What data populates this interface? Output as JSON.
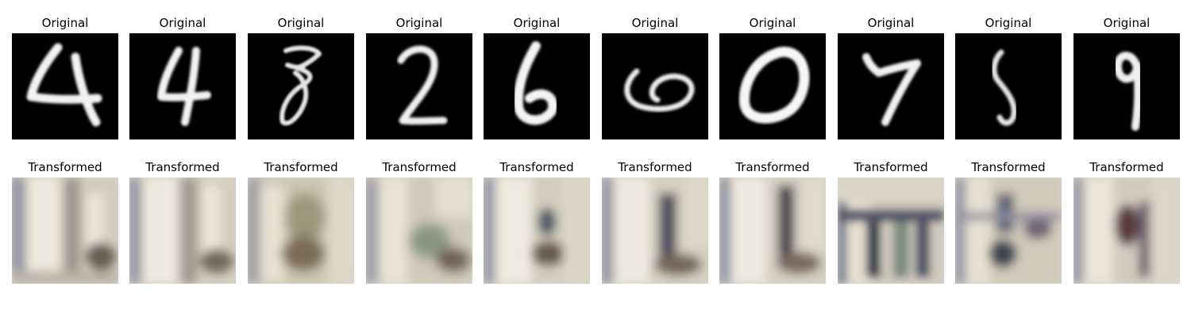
{
  "panels": [
    {
      "original_title": "Original",
      "transformed_title": "Transformed",
      "digit": "4"
    },
    {
      "original_title": "Original",
      "transformed_title": "Transformed",
      "digit": "4"
    },
    {
      "original_title": "Original",
      "transformed_title": "Transformed",
      "digit": "8"
    },
    {
      "original_title": "Original",
      "transformed_title": "Transformed",
      "digit": "2"
    },
    {
      "original_title": "Original",
      "transformed_title": "Transformed",
      "digit": "6"
    },
    {
      "original_title": "Original",
      "transformed_title": "Transformed",
      "digit": "0"
    },
    {
      "original_title": "Original",
      "transformed_title": "Transformed",
      "digit": "0"
    },
    {
      "original_title": "Original",
      "transformed_title": "Transformed",
      "digit": "7"
    },
    {
      "original_title": "Original",
      "transformed_title": "Transformed",
      "digit": "5"
    },
    {
      "original_title": "Original",
      "transformed_title": "Transformed",
      "digit": "9"
    }
  ]
}
